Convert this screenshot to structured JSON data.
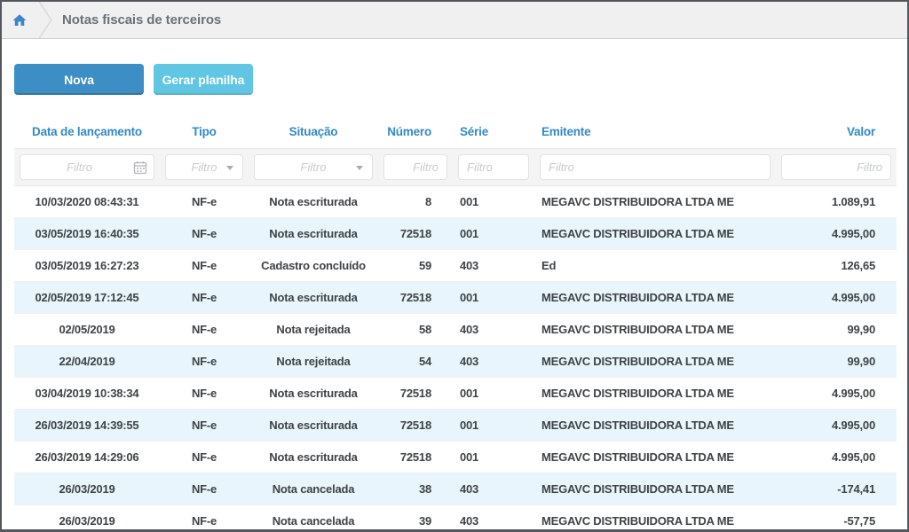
{
  "breadcrumb": {
    "title": "Notas fiscais de terceiros",
    "home_icon": "home-icon"
  },
  "toolbar": {
    "new_button_label": "Nova",
    "spreadsheet_button_label": "Gerar planilha"
  },
  "table": {
    "filter_placeholder": "Filtro",
    "columns": [
      {
        "key": "data_lancamento",
        "label": "Data de lançamento",
        "align": "center"
      },
      {
        "key": "tipo",
        "label": "Tipo",
        "align": "center"
      },
      {
        "key": "situacao",
        "label": "Situação",
        "align": "center"
      },
      {
        "key": "numero",
        "label": "Número",
        "align": "right"
      },
      {
        "key": "serie",
        "label": "Série",
        "align": "left"
      },
      {
        "key": "emitente",
        "label": "Emitente",
        "align": "left"
      },
      {
        "key": "valor",
        "label": "Valor",
        "align": "right"
      }
    ],
    "rows": [
      [
        "10/03/2020 08:43:31",
        "NF-e",
        "Nota escriturada",
        "8",
        "001",
        "MEGAVC DISTRIBUIDORA LTDA ME",
        "1.089,91"
      ],
      [
        "03/05/2019 16:40:35",
        "NF-e",
        "Nota escriturada",
        "72518",
        "001",
        "MEGAVC DISTRIBUIDORA LTDA ME",
        "4.995,00"
      ],
      [
        "03/05/2019 16:27:23",
        "NF-e",
        "Cadastro concluído",
        "59",
        "403",
        "Ed",
        "126,65"
      ],
      [
        "02/05/2019 17:12:45",
        "NF-e",
        "Nota escriturada",
        "72518",
        "001",
        "MEGAVC DISTRIBUIDORA LTDA ME",
        "4.995,00"
      ],
      [
        "02/05/2019",
        "NF-e",
        "Nota rejeitada",
        "58",
        "403",
        "MEGAVC DISTRIBUIDORA LTDA ME",
        "99,90"
      ],
      [
        "22/04/2019",
        "NF-e",
        "Nota rejeitada",
        "54",
        "403",
        "MEGAVC DISTRIBUIDORA LTDA ME",
        "99,90"
      ],
      [
        "03/04/2019 10:38:34",
        "NF-e",
        "Nota escriturada",
        "72518",
        "001",
        "MEGAVC DISTRIBUIDORA LTDA ME",
        "4.995,00"
      ],
      [
        "26/03/2019 14:39:55",
        "NF-e",
        "Nota escriturada",
        "72518",
        "001",
        "MEGAVC DISTRIBUIDORA LTDA ME",
        "4.995,00"
      ],
      [
        "26/03/2019 14:29:06",
        "NF-e",
        "Nota escriturada",
        "72518",
        "001",
        "MEGAVC DISTRIBUIDORA LTDA ME",
        "4.995,00"
      ],
      [
        "26/03/2019",
        "NF-e",
        "Nota cancelada",
        "38",
        "403",
        "MEGAVC DISTRIBUIDORA LTDA ME",
        "-174,41"
      ],
      [
        "26/03/2019",
        "NF-e",
        "Nota cancelada",
        "39",
        "403",
        "MEGAVC DISTRIBUIDORA LTDA ME",
        "-57,75"
      ]
    ]
  },
  "colors": {
    "accent_blue": "#3289c7",
    "primary_button": "#3d8ec5",
    "secondary_button": "#61c6e3",
    "row_alternate": "#e9f5fc",
    "breadcrumb_bg": "#f0f0f0",
    "window_border": "#54585e"
  }
}
